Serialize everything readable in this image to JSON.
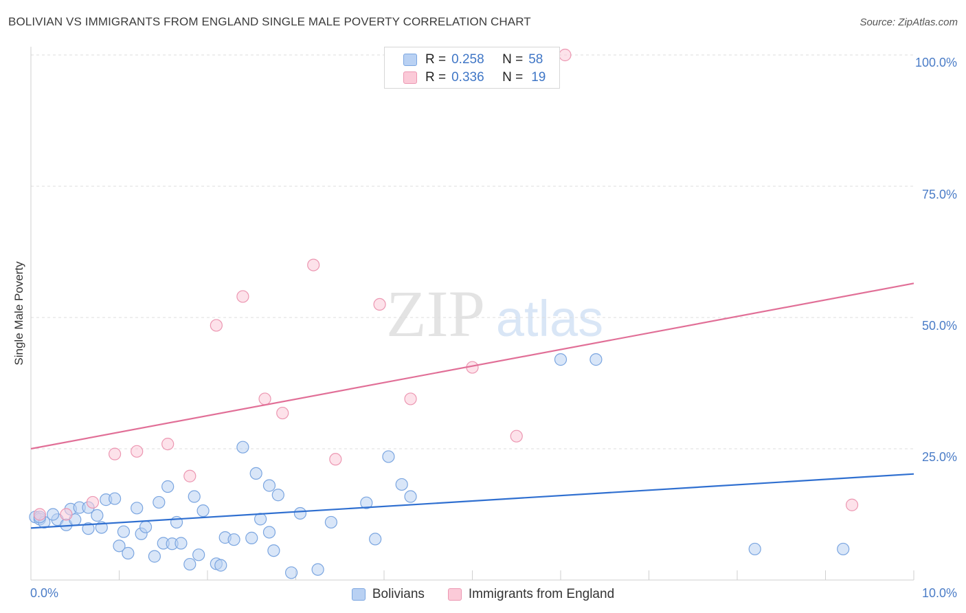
{
  "title": "BOLIVIAN VS IMMIGRANTS FROM ENGLAND SINGLE MALE POVERTY CORRELATION CHART",
  "source": "Source: ZipAtlas.com",
  "watermark": {
    "zip": "ZIP",
    "atlas": "atlas"
  },
  "stats": {
    "rows": [
      {
        "r_label": "R =",
        "r_value": "0.258",
        "n_label": "N =",
        "n_value": "58"
      },
      {
        "r_label": "R =",
        "r_value": "0.336",
        "n_label": "N =",
        "n_value": "19"
      }
    ]
  },
  "legend": {
    "series1": "Bolivians",
    "series2": "Immigrants from England"
  },
  "colors": {
    "blue_fill": "#b9d1f3",
    "blue_stroke": "#7aa5e0",
    "blue_line": "#2f6fd0",
    "pink_fill": "#fbcad8",
    "pink_stroke": "#ec96b1",
    "pink_line": "#e16f97",
    "tick_text": "#4a7cc7",
    "grid": "#dcdcdc"
  },
  "chart_data": {
    "type": "scatter",
    "title": "BOLIVIAN VS IMMIGRANTS FROM ENGLAND SINGLE MALE POVERTY CORRELATION CHART",
    "xlabel": "",
    "ylabel": "Single Male Poverty",
    "xlim": [
      0,
      10
    ],
    "ylim": [
      0,
      100
    ],
    "x_tick_labels": [
      {
        "value": 0,
        "label": "0.0%"
      },
      {
        "value": 10,
        "label": "10.0%"
      }
    ],
    "y_tick_labels": [
      {
        "value": 25,
        "label": "25.0%"
      },
      {
        "value": 50,
        "label": "50.0%"
      },
      {
        "value": 75,
        "label": "75.0%"
      },
      {
        "value": 100,
        "label": "100.0%"
      }
    ],
    "series": [
      {
        "name": "Bolivians",
        "R": 0.258,
        "N": 58,
        "trendline": {
          "x": [
            0,
            10
          ],
          "y": [
            9.9,
            20.2
          ]
        },
        "points": [
          [
            0.05,
            12.0
          ],
          [
            0.1,
            11.6
          ],
          [
            0.15,
            11.0
          ],
          [
            0.3,
            11.5
          ],
          [
            0.25,
            12.5
          ],
          [
            0.4,
            10.5
          ],
          [
            0.5,
            11.5
          ],
          [
            0.45,
            13.5
          ],
          [
            0.55,
            13.8
          ],
          [
            0.65,
            13.8
          ],
          [
            0.75,
            12.3
          ],
          [
            0.65,
            9.8
          ],
          [
            0.8,
            10.0
          ],
          [
            0.85,
            15.3
          ],
          [
            0.95,
            15.5
          ],
          [
            1.0,
            6.5
          ],
          [
            1.05,
            9.2
          ],
          [
            1.1,
            5.1
          ],
          [
            1.2,
            13.7
          ],
          [
            1.25,
            8.8
          ],
          [
            1.3,
            10.1
          ],
          [
            1.4,
            4.5
          ],
          [
            1.45,
            14.8
          ],
          [
            1.5,
            7.0
          ],
          [
            1.55,
            17.8
          ],
          [
            1.6,
            6.9
          ],
          [
            1.65,
            11.0
          ],
          [
            1.7,
            7.0
          ],
          [
            1.8,
            3.0
          ],
          [
            1.85,
            15.9
          ],
          [
            1.9,
            4.8
          ],
          [
            1.95,
            13.2
          ],
          [
            2.1,
            3.1
          ],
          [
            2.15,
            2.8
          ],
          [
            2.2,
            8.1
          ],
          [
            2.3,
            7.7
          ],
          [
            2.4,
            25.3
          ],
          [
            2.5,
            8.0
          ],
          [
            2.55,
            20.3
          ],
          [
            2.6,
            11.6
          ],
          [
            2.7,
            9.1
          ],
          [
            2.7,
            18.0
          ],
          [
            2.75,
            5.6
          ],
          [
            2.8,
            16.2
          ],
          [
            2.95,
            1.4
          ],
          [
            3.05,
            12.7
          ],
          [
            3.25,
            2.0
          ],
          [
            3.4,
            11.0
          ],
          [
            3.8,
            14.7
          ],
          [
            3.9,
            7.8
          ],
          [
            4.05,
            23.5
          ],
          [
            4.2,
            18.2
          ],
          [
            4.3,
            15.9
          ],
          [
            6.0,
            42.0
          ],
          [
            6.4,
            42.0
          ],
          [
            8.2,
            5.9
          ],
          [
            9.2,
            5.9
          ],
          [
            0.1,
            12.0
          ]
        ]
      },
      {
        "name": "Immigrants from England",
        "R": 0.336,
        "N": 19,
        "trendline": {
          "x": [
            0,
            10
          ],
          "y": [
            25.0,
            56.5
          ]
        },
        "points": [
          [
            0.1,
            12.5
          ],
          [
            0.4,
            12.5
          ],
          [
            0.7,
            14.8
          ],
          [
            0.95,
            24.0
          ],
          [
            1.2,
            24.5
          ],
          [
            1.55,
            25.9
          ],
          [
            1.8,
            19.8
          ],
          [
            2.1,
            48.5
          ],
          [
            2.4,
            54.0
          ],
          [
            2.65,
            34.5
          ],
          [
            2.85,
            31.8
          ],
          [
            3.2,
            60.0
          ],
          [
            3.45,
            23.0
          ],
          [
            3.95,
            52.5
          ],
          [
            4.3,
            34.5
          ],
          [
            5.0,
            40.5
          ],
          [
            5.5,
            27.4
          ],
          [
            6.05,
            100.0
          ],
          [
            9.3,
            14.3
          ]
        ]
      }
    ]
  }
}
